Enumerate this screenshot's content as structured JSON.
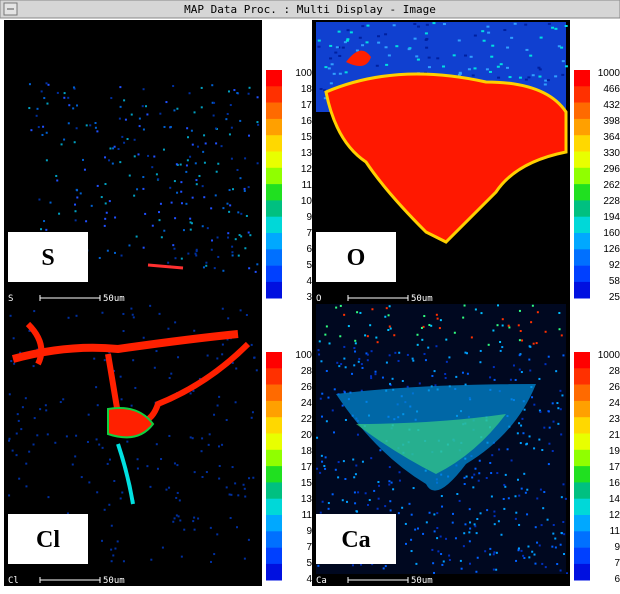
{
  "window": {
    "title": "MAP Data Proc. : Multi Display - Image"
  },
  "panels": [
    {
      "element_label": "S",
      "corner_label": "S",
      "scale_label": "50um",
      "colorbar_labels": [
        "100",
        "18",
        "17",
        "16",
        "15",
        "13",
        "12",
        "11",
        "10",
        "9",
        "7",
        "6",
        "5",
        "4",
        "3"
      ]
    },
    {
      "element_label": "O",
      "corner_label": "O",
      "scale_label": "50um",
      "colorbar_labels": [
        "1000",
        "466",
        "432",
        "398",
        "364",
        "330",
        "296",
        "262",
        "228",
        "194",
        "160",
        "126",
        "92",
        "58",
        "25"
      ]
    },
    {
      "element_label": "Cl",
      "corner_label": "Cl",
      "scale_label": "50um",
      "colorbar_labels": [
        "100",
        "28",
        "26",
        "24",
        "22",
        "20",
        "18",
        "17",
        "15",
        "13",
        "11",
        "9",
        "7",
        "5",
        "4"
      ]
    },
    {
      "element_label": "Ca",
      "corner_label": "Ca",
      "scale_label": "50um",
      "colorbar_labels": [
        "1000",
        "28",
        "26",
        "24",
        "23",
        "21",
        "19",
        "17",
        "16",
        "14",
        "12",
        "11",
        "9",
        "7",
        "6"
      ]
    }
  ]
}
